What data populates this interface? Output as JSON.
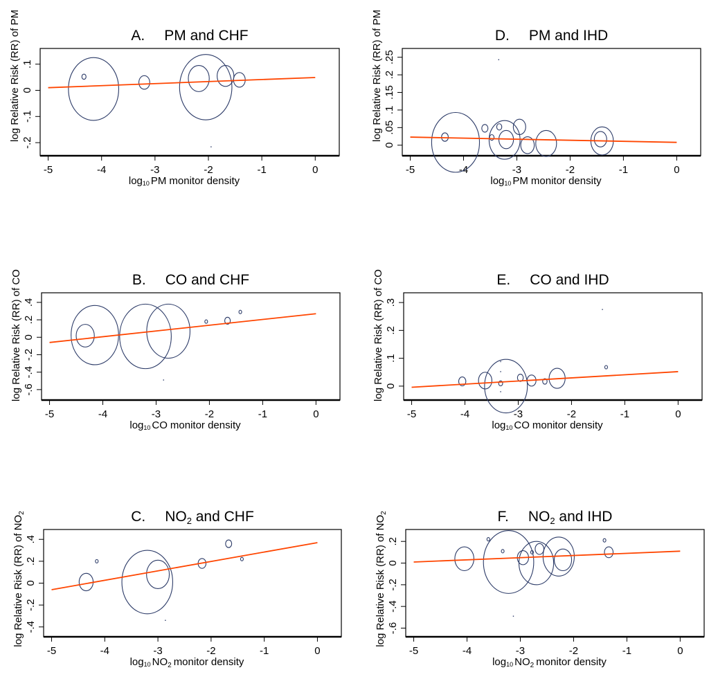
{
  "colors": {
    "marker": "#2b3a67",
    "fit_line": "#ff4500",
    "axis": "#000000"
  },
  "chart_data": [
    {
      "id": "A",
      "type": "scatter",
      "title_letter": "A.",
      "title": "PM and CHF",
      "title_sub": "",
      "title_after": "",
      "xlabel": "monitor density",
      "xlabel_pollutant": "PM",
      "xlabel_pollutant_sub": "",
      "ylabel": "log Relative Risk (RR) of PM",
      "ylabel_sub": "",
      "xlim": [
        -5.15,
        0.45
      ],
      "ylim": [
        -0.25,
        0.16
      ],
      "xticks": [
        -5,
        -4,
        -3,
        -2,
        -1,
        0
      ],
      "xtick_labels": [
        "-5",
        "-4",
        "-3",
        "-2",
        "-1",
        "0"
      ],
      "yticks": [
        -0.2,
        -0.1,
        0,
        0.1
      ],
      "ytick_labels": [
        "-.2",
        "-.1",
        "0",
        ".1"
      ],
      "fit_line": {
        "x": [
          -5,
          0
        ],
        "y": [
          0.01,
          0.049
        ]
      },
      "points": [
        {
          "x": -4.15,
          "y": 0.005,
          "weight": 0.12
        },
        {
          "x": -4.33,
          "y": 0.052,
          "weight": 0.01
        },
        {
          "x": -3.2,
          "y": 0.03,
          "weight": 0.026
        },
        {
          "x": -2.05,
          "y": 0.012,
          "weight": 0.125
        },
        {
          "x": -2.18,
          "y": 0.045,
          "weight": 0.05
        },
        {
          "x": -1.68,
          "y": 0.055,
          "weight": 0.04
        },
        {
          "x": -1.42,
          "y": 0.04,
          "weight": 0.028
        },
        {
          "x": -1.95,
          "y": -0.216,
          "weight": 0.0
        }
      ]
    },
    {
      "id": "B",
      "type": "scatter",
      "title_letter": "B.",
      "title": "CO and CHF",
      "title_sub": "",
      "title_after": "",
      "xlabel": "monitor density",
      "xlabel_pollutant": "CO",
      "xlabel_pollutant_sub": "",
      "ylabel": "log Relative Risk (RR) of CO",
      "ylabel_sub": "",
      "xlim": [
        -5.15,
        0.45
      ],
      "ylim": [
        -0.72,
        0.51
      ],
      "xticks": [
        -5,
        -4,
        -3,
        -2,
        -1,
        0
      ],
      "xtick_labels": [
        "-5",
        "-4",
        "-3",
        "-2",
        "-1",
        "0"
      ],
      "yticks": [
        -0.6,
        -0.4,
        -0.2,
        0,
        0.2,
        0.4
      ],
      "ytick_labels": [
        "-.6",
        "-.4",
        "-.2",
        "0",
        ".2",
        ".4"
      ],
      "fit_line": {
        "x": [
          -5,
          0
        ],
        "y": [
          -0.06,
          0.27
        ]
      },
      "points": [
        {
          "x": -4.15,
          "y": 0.025,
          "weight": 0.34
        },
        {
          "x": -4.33,
          "y": 0.018,
          "weight": 0.13
        },
        {
          "x": -3.2,
          "y": 0.01,
          "weight": 0.37
        },
        {
          "x": -2.77,
          "y": 0.07,
          "weight": 0.31
        },
        {
          "x": -2.06,
          "y": 0.18,
          "weight": 0.012
        },
        {
          "x": -1.66,
          "y": 0.19,
          "weight": 0.04
        },
        {
          "x": -1.42,
          "y": 0.29,
          "weight": 0.01
        },
        {
          "x": -2.86,
          "y": -0.49,
          "weight": 0.0
        }
      ]
    },
    {
      "id": "C",
      "type": "scatter",
      "title_letter": "C.",
      "title": "NO",
      "title_sub": "2",
      "title_after": " and CHF",
      "xlabel": "monitor density",
      "xlabel_pollutant": "NO",
      "xlabel_pollutant_sub": "2",
      "ylabel": "log Relative Risk (RR) of NO",
      "ylabel_sub": "2",
      "xlim": [
        -5.15,
        0.45
      ],
      "ylim": [
        -0.49,
        0.49
      ],
      "xticks": [
        -5,
        -4,
        -3,
        -2,
        -1,
        0
      ],
      "xtick_labels": [
        "-5",
        "-4",
        "-3",
        "-2",
        "-1",
        "0"
      ],
      "yticks": [
        -0.4,
        -0.2,
        0,
        0.2,
        0.4
      ],
      "ytick_labels": [
        "-.4",
        "-.2",
        "0",
        ".2",
        ".4"
      ],
      "fit_line": {
        "x": [
          -5,
          0
        ],
        "y": [
          -0.06,
          0.37
        ]
      },
      "points": [
        {
          "x": -4.35,
          "y": 0.01,
          "weight": 0.08
        },
        {
          "x": -4.15,
          "y": 0.2,
          "weight": 0.012
        },
        {
          "x": -3.2,
          "y": 0.01,
          "weight": 0.29
        },
        {
          "x": -3.0,
          "y": 0.08,
          "weight": 0.13
        },
        {
          "x": -2.17,
          "y": 0.18,
          "weight": 0.045
        },
        {
          "x": -1.67,
          "y": 0.36,
          "weight": 0.035
        },
        {
          "x": -1.42,
          "y": 0.22,
          "weight": 0.015
        },
        {
          "x": -2.86,
          "y": -0.34,
          "weight": 0.0
        }
      ]
    },
    {
      "id": "D",
      "type": "scatter",
      "title_letter": "D.",
      "title": "PM and IHD",
      "title_sub": "",
      "title_after": "",
      "xlabel": "monitor density",
      "xlabel_pollutant": "PM",
      "xlabel_pollutant_sub": "",
      "ylabel": "log Relative Risk (RR) of PM",
      "ylabel_sub": "",
      "xlim": [
        -5.15,
        0.45
      ],
      "ylim": [
        -0.03,
        0.275
      ],
      "xticks": [
        -5,
        -4,
        -3,
        -2,
        -1,
        0
      ],
      "xtick_labels": [
        "-5",
        "-4",
        "-3",
        "-2",
        "-1",
        "0"
      ],
      "yticks": [
        0,
        0.05,
        0.1,
        0.15,
        0.2,
        0.25
      ],
      "ytick_labels": [
        "0",
        ".05",
        ".1",
        ".15",
        ".2",
        ".25"
      ],
      "fit_line": {
        "x": [
          -5,
          0
        ],
        "y": [
          0.023,
          0.008
        ]
      },
      "points": [
        {
          "x": -4.15,
          "y": 0.008,
          "weight": 0.085
        },
        {
          "x": -4.35,
          "y": 0.023,
          "weight": 0.012
        },
        {
          "x": -3.6,
          "y": 0.048,
          "weight": 0.011
        },
        {
          "x": -3.47,
          "y": 0.022,
          "weight": 0.008
        },
        {
          "x": -3.33,
          "y": 0.052,
          "weight": 0.009
        },
        {
          "x": -3.23,
          "y": 0.015,
          "weight": 0.055
        },
        {
          "x": -3.2,
          "y": 0.016,
          "weight": 0.026
        },
        {
          "x": -2.95,
          "y": 0.052,
          "weight": 0.022
        },
        {
          "x": -2.8,
          "y": 0.0,
          "weight": 0.024
        },
        {
          "x": -2.45,
          "y": 0.005,
          "weight": 0.037
        },
        {
          "x": -1.4,
          "y": 0.012,
          "weight": 0.04
        },
        {
          "x": -1.43,
          "y": 0.017,
          "weight": 0.022
        },
        {
          "x": -3.34,
          "y": 0.243,
          "weight": 0.0
        }
      ]
    },
    {
      "id": "E",
      "type": "scatter",
      "title_letter": "E.",
      "title": "CO and IHD",
      "title_sub": "",
      "title_after": "",
      "xlabel": "monitor density",
      "xlabel_pollutant": "CO",
      "xlabel_pollutant_sub": "",
      "ylabel": "log Relative Risk (RR) of CO",
      "ylabel_sub": "",
      "xlim": [
        -5.15,
        0.45
      ],
      "ylim": [
        -0.05,
        0.335
      ],
      "xticks": [
        -5,
        -4,
        -3,
        -2,
        -1,
        0
      ],
      "xtick_labels": [
        "-5",
        "-4",
        "-3",
        "-2",
        "-1",
        "0"
      ],
      "yticks": [
        0,
        0.1,
        0.2,
        0.3
      ],
      "ytick_labels": [
        "0",
        ".1",
        ".2",
        ".3"
      ],
      "fit_line": {
        "x": [
          -5,
          0
        ],
        "y": [
          -0.004,
          0.052
        ]
      },
      "points": [
        {
          "x": -4.05,
          "y": 0.017,
          "weight": 0.016
        },
        {
          "x": -3.62,
          "y": 0.02,
          "weight": 0.03
        },
        {
          "x": -3.23,
          "y": 0.0,
          "weight": 0.096
        },
        {
          "x": -3.33,
          "y": 0.01,
          "weight": 0.009
        },
        {
          "x": -2.96,
          "y": 0.03,
          "weight": 0.013
        },
        {
          "x": -2.75,
          "y": 0.02,
          "weight": 0.02
        },
        {
          "x": -2.5,
          "y": 0.017,
          "weight": 0.01
        },
        {
          "x": -2.27,
          "y": 0.028,
          "weight": 0.036
        },
        {
          "x": -1.35,
          "y": 0.068,
          "weight": 0.005
        },
        {
          "x": -1.42,
          "y": 0.275,
          "weight": 0.0
        },
        {
          "x": -3.33,
          "y": 0.088,
          "weight": 0.0
        },
        {
          "x": -3.33,
          "y": 0.052,
          "weight": 0.0
        },
        {
          "x": -3.33,
          "y": -0.02,
          "weight": 0.0
        }
      ]
    },
    {
      "id": "F",
      "type": "scatter",
      "title_letter": "F.",
      "title": "NO",
      "title_sub": "2",
      "title_after": " and IHD",
      "xlabel": "monitor density",
      "xlabel_pollutant": "NO",
      "xlabel_pollutant_sub": "2",
      "ylabel": "log Relative Risk (RR) of NO",
      "ylabel_sub": "2",
      "xlim": [
        -5.15,
        0.45
      ],
      "ylim": [
        -0.68,
        0.31
      ],
      "xticks": [
        -5,
        -4,
        -3,
        -2,
        -1,
        0
      ],
      "xtick_labels": [
        "-5",
        "-4",
        "-3",
        "-2",
        "-1",
        "0"
      ],
      "yticks": [
        -0.6,
        -0.4,
        -0.2,
        0,
        0.2
      ],
      "ytick_labels": [
        "-.6",
        "-.4",
        "-.2",
        "0",
        ".2"
      ],
      "fit_line": {
        "x": [
          -5,
          0
        ],
        "y": [
          0.01,
          0.11
        ]
      },
      "points": [
        {
          "x": -4.05,
          "y": 0.04,
          "weight": 0.11
        },
        {
          "x": -3.6,
          "y": 0.22,
          "weight": 0.01
        },
        {
          "x": -3.33,
          "y": 0.11,
          "weight": 0.012
        },
        {
          "x": -3.22,
          "y": 0.01,
          "weight": 0.29
        },
        {
          "x": -2.95,
          "y": 0.05,
          "weight": 0.065
        },
        {
          "x": -2.78,
          "y": 0.1,
          "weight": 0.016
        },
        {
          "x": -2.7,
          "y": 0.0,
          "weight": 0.2
        },
        {
          "x": -2.64,
          "y": 0.13,
          "weight": 0.05
        },
        {
          "x": -2.28,
          "y": 0.06,
          "weight": 0.18
        },
        {
          "x": -2.2,
          "y": 0.03,
          "weight": 0.1
        },
        {
          "x": -1.42,
          "y": 0.21,
          "weight": 0.015
        },
        {
          "x": -1.34,
          "y": 0.1,
          "weight": 0.05
        },
        {
          "x": -3.13,
          "y": -0.49,
          "weight": 0.0
        }
      ]
    }
  ]
}
